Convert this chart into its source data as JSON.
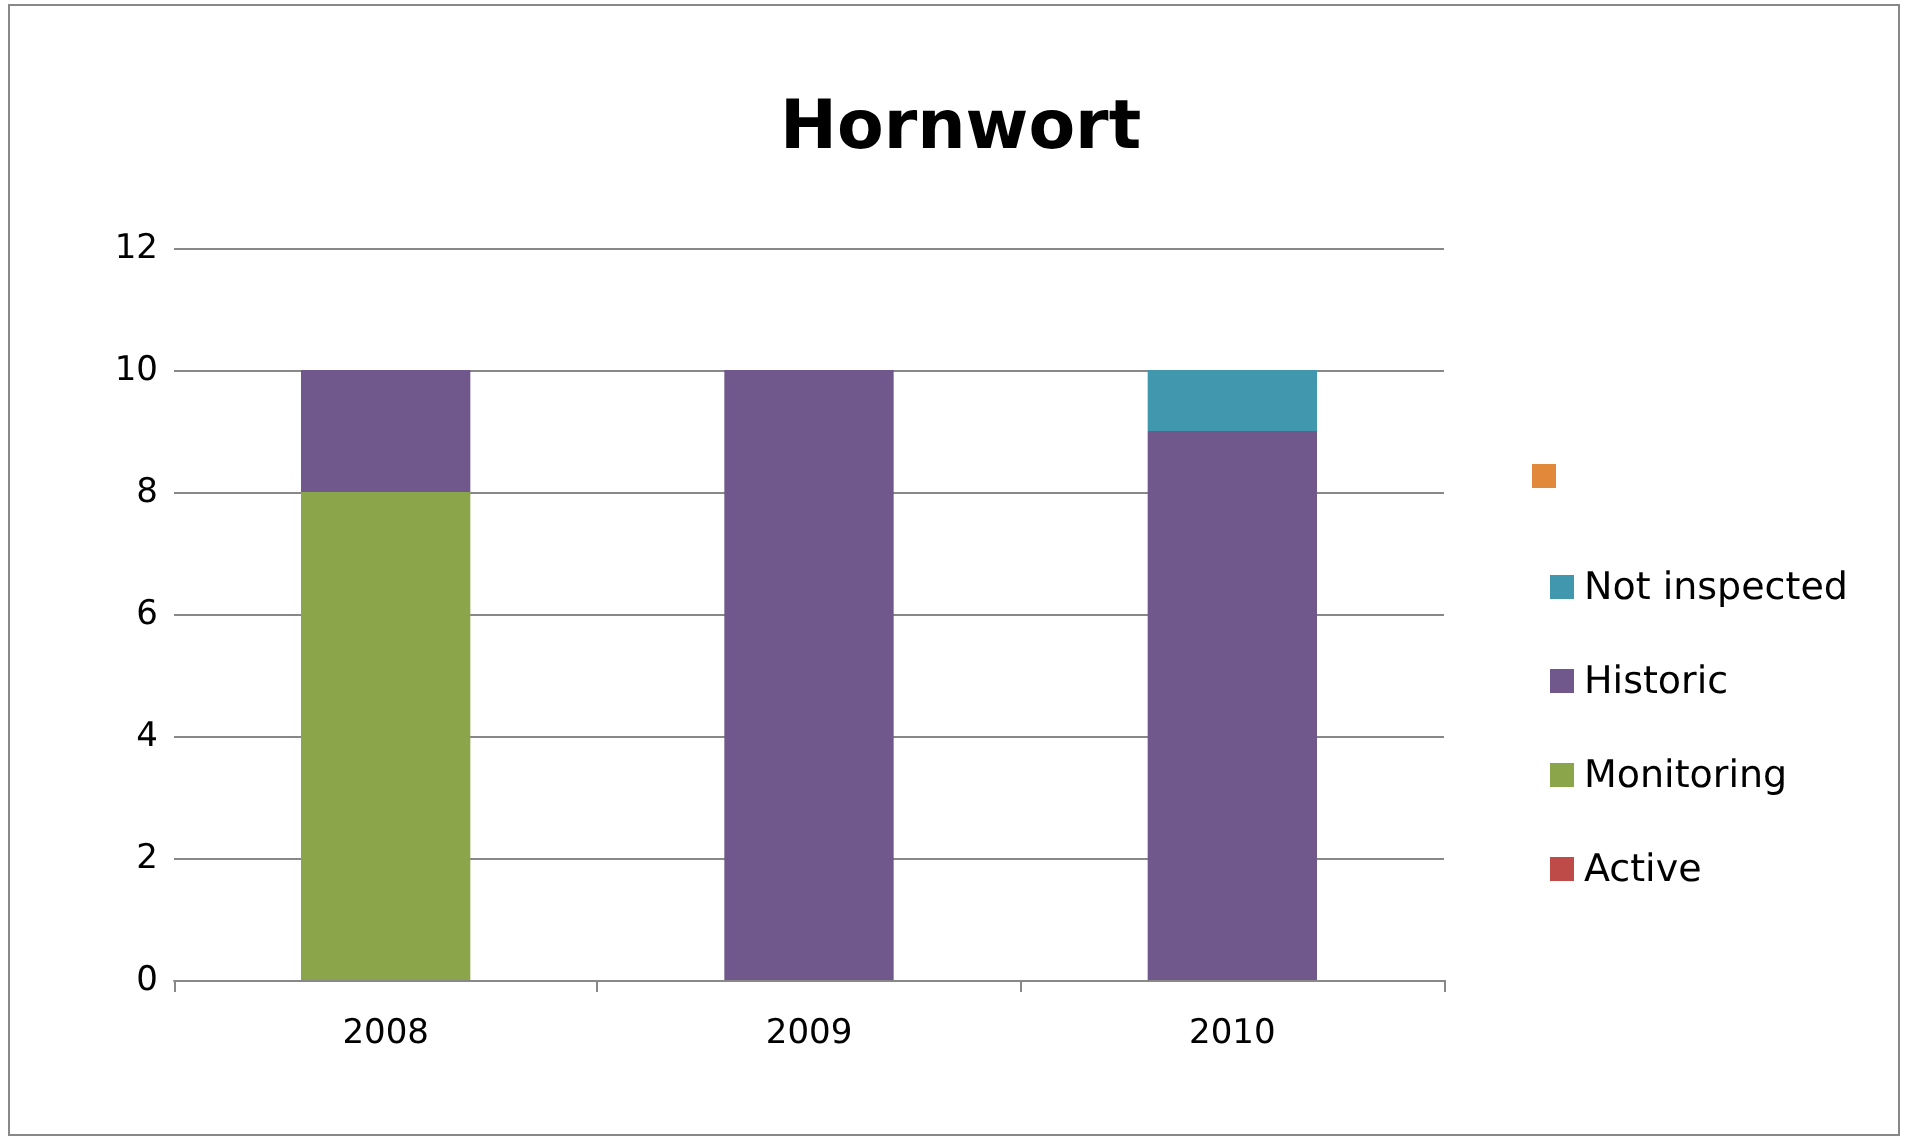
{
  "chart_data": {
    "type": "bar",
    "title": "Hornwort",
    "categories": [
      "2008",
      "2009",
      "2010"
    ],
    "stacked": true,
    "series": [
      {
        "name": "Active",
        "color": "#be4b48",
        "values": [
          0,
          0,
          0
        ]
      },
      {
        "name": "Monitoring",
        "color": "#8ba64a",
        "values": [
          8,
          0,
          0
        ]
      },
      {
        "name": "Historic",
        "color": "#70588d",
        "values": [
          2,
          10,
          9
        ]
      },
      {
        "name": "Not inspected",
        "color": "#4197ad",
        "values": [
          0,
          0,
          1
        ]
      },
      {
        "color": "#e2883a",
        "values": [
          0,
          0,
          0
        ]
      }
    ],
    "ylim": [
      0,
      12
    ],
    "yticks": [
      0,
      2,
      4,
      6,
      8,
      10,
      12
    ],
    "grid": "y",
    "legend": "right"
  }
}
